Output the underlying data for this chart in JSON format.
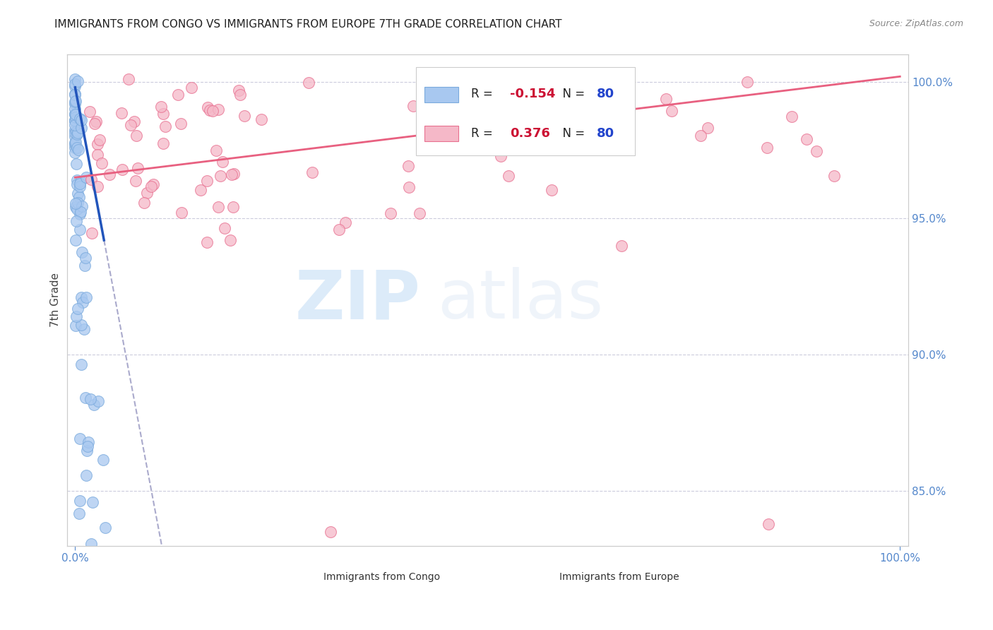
{
  "title": "IMMIGRANTS FROM CONGO VS IMMIGRANTS FROM EUROPE 7TH GRADE CORRELATION CHART",
  "source": "Source: ZipAtlas.com",
  "ylabel": "7th Grade",
  "legend_congo": "Immigrants from Congo",
  "legend_europe": "Immigrants from Europe",
  "R_congo": -0.154,
  "N_congo": 80,
  "R_europe": 0.376,
  "N_europe": 80,
  "congo_color": "#a8c8f0",
  "europe_color": "#f5b8c8",
  "congo_edge_color": "#7aaadd",
  "europe_edge_color": "#e87090",
  "congo_line_color": "#2255bb",
  "europe_line_color": "#e86080",
  "dash_color": "#aaaacc",
  "ymin": 83.0,
  "ymax": 101.0,
  "xmin": 0.0,
  "xmax": 1.0,
  "yticks": [
    85.0,
    90.0,
    95.0,
    100.0
  ],
  "ytick_labels": [
    "85.0%",
    "90.0%",
    "95.0%",
    "100.0%"
  ],
  "xticks": [
    0.0,
    1.0
  ],
  "xtick_labels": [
    "0.0%",
    "100.0%"
  ],
  "watermark_zip": "ZIP",
  "watermark_atlas": "atlas"
}
